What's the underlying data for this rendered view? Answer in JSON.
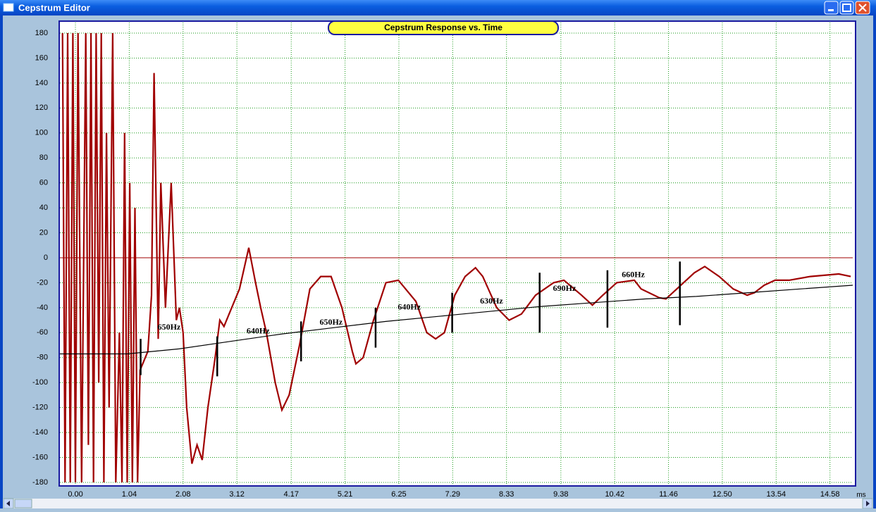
{
  "window": {
    "title": "Cepstrum Editor"
  },
  "chart_data": {
    "type": "line",
    "title": "Cepstrum Response vs. Time",
    "x_label": "ms",
    "xlim": [
      -0.3,
      15.02
    ],
    "ylim": [
      -180,
      180
    ],
    "xticks": [
      {
        "value": 0,
        "label": "0.00"
      },
      1.04,
      2.08,
      3.12,
      4.17,
      5.21,
      6.25,
      7.29,
      8.33,
      9.38,
      10.42,
      11.46,
      {
        "value": 12.5,
        "label": "12.50"
      },
      13.54,
      14.58
    ],
    "yticks": [
      -180,
      -160,
      -140,
      -120,
      -100,
      -80,
      -60,
      -40,
      -20,
      0,
      20,
      40,
      60,
      80,
      100,
      120,
      140,
      160,
      180
    ],
    "grid": true,
    "grid_color": "#1a9a1a",
    "reference_line": {
      "value": 0,
      "color": "#a00000"
    },
    "series": [
      {
        "color": "#a00000",
        "x": [
          -0.25,
          -0.2,
          -0.15,
          -0.1,
          -0.05,
          0.0,
          0.05,
          0.12,
          0.2,
          0.25,
          0.3,
          0.35,
          0.4,
          0.45,
          0.5,
          0.55,
          0.6,
          0.65,
          0.72,
          0.78,
          0.85,
          0.9,
          0.95,
          1.0,
          1.05,
          1.1,
          1.15,
          1.2,
          1.25,
          1.3,
          1.4,
          1.47,
          1.52,
          1.6,
          1.65,
          1.74,
          1.85,
          1.95,
          2.01,
          2.08,
          2.15,
          2.25,
          2.35,
          2.45,
          2.56,
          2.7,
          2.79,
          2.87,
          2.97,
          3.17,
          3.35,
          3.48,
          3.58,
          3.69,
          3.86,
          3.99,
          4.13,
          4.33,
          4.53,
          4.74,
          4.94,
          5.15,
          5.35,
          5.42,
          5.56,
          5.76,
          6.0,
          6.24,
          6.58,
          6.79,
          6.96,
          7.13,
          7.33,
          7.53,
          7.73,
          7.87,
          8.14,
          8.38,
          8.62,
          8.89,
          9.24,
          9.44,
          9.78,
          9.99,
          10.19,
          10.46,
          10.8,
          10.93,
          11.28,
          11.41,
          11.62,
          11.96,
          12.16,
          12.44,
          12.71,
          12.98,
          13.12,
          13.31,
          13.52,
          13.79,
          14.2,
          14.75,
          14.98
        ],
        "values": [
          180,
          -180,
          180,
          -180,
          180,
          -180,
          180,
          -180,
          180,
          -150,
          180,
          -180,
          180,
          -100,
          180,
          -180,
          100,
          -120,
          180,
          -180,
          -60,
          -180,
          100,
          -180,
          60,
          -180,
          40,
          -180,
          -90,
          -85,
          -75,
          -30,
          148,
          -65,
          60,
          -40,
          60,
          -50,
          -40,
          -60,
          -120,
          -165,
          -150,
          -162,
          -120,
          -80,
          -50,
          -55,
          -45,
          -25,
          8,
          -20,
          -40,
          -60,
          -100,
          -122,
          -110,
          -70,
          -25,
          -15,
          -15,
          -40,
          -75,
          -85,
          -80,
          -50,
          -20,
          -18,
          -35,
          -60,
          -65,
          -60,
          -30,
          -15,
          -8,
          -15,
          -40,
          -50,
          -45,
          -30,
          -20,
          -18,
          -30,
          -38,
          -30,
          -20,
          -18,
          -25,
          -32,
          -33,
          -25,
          -12,
          -7,
          -15,
          -25,
          -30,
          -28,
          -22,
          -18,
          -18,
          -15,
          -13,
          -15
        ]
      },
      {
        "color": "#000000",
        "x": [
          -0.3,
          0,
          1,
          2,
          3,
          4,
          5,
          6,
          7,
          8,
          9,
          10,
          11,
          12,
          13,
          14,
          15.02
        ],
        "values": [
          -77,
          -77,
          -77,
          -73,
          -67,
          -61,
          -56,
          -51,
          -47,
          -43,
          -39,
          -36,
          -33,
          -31,
          -28,
          -25,
          -22
        ]
      }
    ],
    "markers": {
      "color": "#000000",
      "x": [
        1.26,
        2.74,
        4.36,
        5.8,
        7.28,
        8.97,
        10.28,
        11.68
      ],
      "top": [
        -65,
        -63,
        -51,
        -40,
        -28,
        -12,
        -10,
        -3
      ],
      "bottom": [
        -94,
        -95,
        -83,
        -72,
        -60,
        -60,
        -56,
        -54
      ]
    },
    "annotations": [
      {
        "text": "650Hz",
        "x": 1.81,
        "y": -56
      },
      {
        "text": "640Hz",
        "x": 3.53,
        "y": -59
      },
      {
        "text": "650Hz",
        "x": 4.94,
        "y": -52
      },
      {
        "text": "640Hz",
        "x": 6.45,
        "y": -40
      },
      {
        "text": "630Hz",
        "x": 8.04,
        "y": -35
      },
      {
        "text": "690Hz",
        "x": 9.45,
        "y": -25
      },
      {
        "text": "660Hz",
        "x": 10.78,
        "y": -14
      }
    ]
  }
}
